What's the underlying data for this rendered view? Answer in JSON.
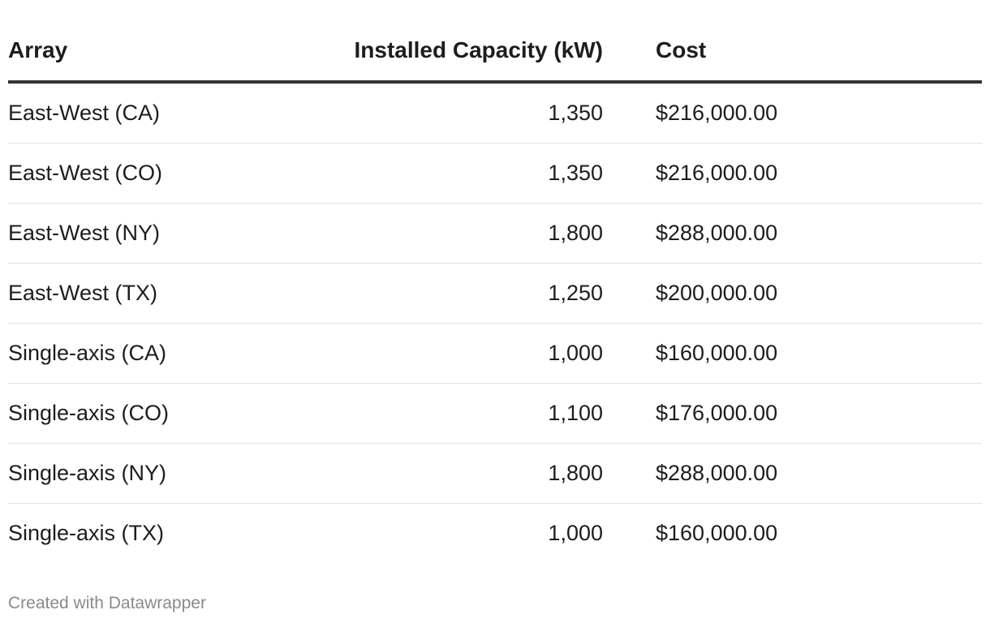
{
  "chart_data": {
    "type": "table",
    "columns": [
      "Array",
      "Installed Capacity (kW)",
      "Cost"
    ],
    "rows": [
      {
        "array": "East-West (CA)",
        "capacity": "1,350",
        "cost": "$216,000.00"
      },
      {
        "array": "East-West (CO)",
        "capacity": "1,350",
        "cost": "$216,000.00"
      },
      {
        "array": "East-West (NY)",
        "capacity": "1,800",
        "cost": "$288,000.00"
      },
      {
        "array": "East-West (TX)",
        "capacity": "1,250",
        "cost": "$200,000.00"
      },
      {
        "array": "Single-axis (CA)",
        "capacity": "1,000",
        "cost": "$160,000.00"
      },
      {
        "array": "Single-axis (CO)",
        "capacity": "1,100",
        "cost": "$176,000.00"
      },
      {
        "array": "Single-axis (NY)",
        "capacity": "1,800",
        "cost": "$288,000.00"
      },
      {
        "array": "Single-axis (TX)",
        "capacity": "1,000",
        "cost": "$160,000.00"
      }
    ]
  },
  "footer": {
    "credit": "Created with Datawrapper"
  },
  "colors": {
    "text": "#1d1d1d",
    "header_rule": "#333333",
    "row_divider": "#e3e3e3",
    "footer_text": "#8a8a8a"
  }
}
